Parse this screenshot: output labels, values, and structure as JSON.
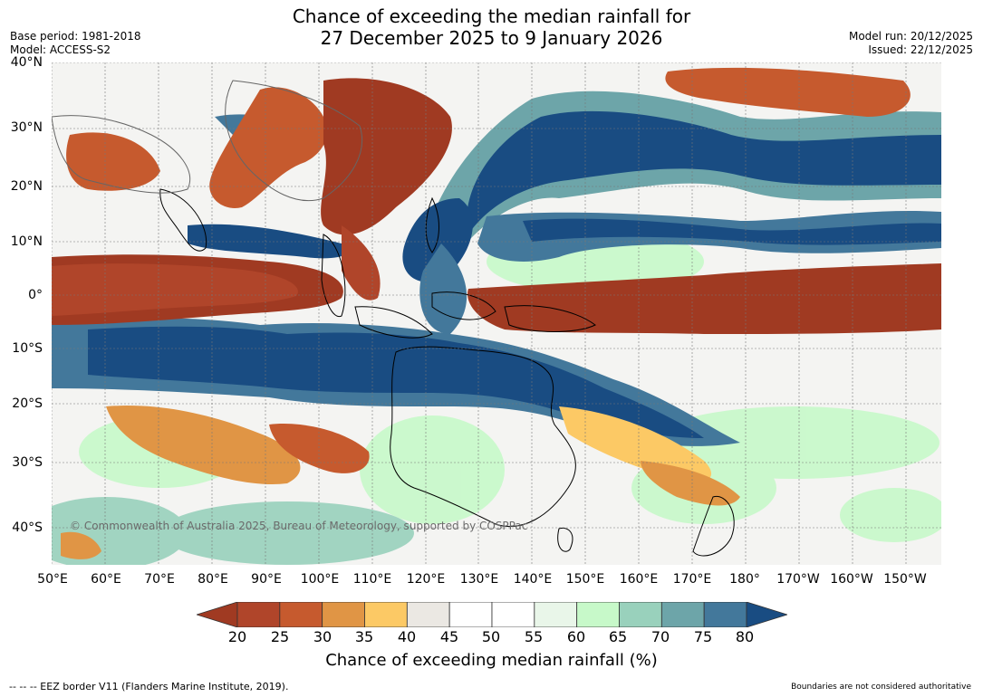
{
  "header": {
    "title_line1": "Chance of exceeding the median rainfall for",
    "title_line2": "27 December 2025 to 9 January 2026",
    "base_period": "Base period: 1981-2018",
    "model": "Model: ACCESS-S2",
    "model_run": "Model run: 20/12/2025",
    "issued": "Issued: 22/12/2025"
  },
  "map": {
    "lat_labels": [
      "40°N",
      "30°N",
      "20°N",
      "10°N",
      "0°",
      "10°S",
      "20°S",
      "30°S",
      "40°S"
    ],
    "lon_labels": [
      "50°E",
      "60°E",
      "70°E",
      "80°E",
      "90°E",
      "100°E",
      "110°E",
      "120°E",
      "130°E",
      "140°E",
      "150°E",
      "160°E",
      "170°E",
      "180°",
      "170°W",
      "160°W",
      "150°W"
    ],
    "copyright": "© Commonwealth of Australia 2025, Bureau of Meteorology, supported by COSPPac"
  },
  "legend": {
    "ticks": [
      "20",
      "25",
      "30",
      "35",
      "40",
      "45",
      "50",
      "55",
      "60",
      "65",
      "70",
      "75",
      "80"
    ],
    "colors": [
      "#a03a22",
      "#b0452a",
      "#c65a2e",
      "#e09545",
      "#fcc965",
      "#ebe8e3",
      "#ffffff",
      "#ffffff",
      "#e9f6e9",
      "#c7f9c9",
      "#99d1bc",
      "#6da5a9",
      "#43789b",
      "#194c82"
    ],
    "label": "Chance of exceeding median rainfall (%)"
  },
  "footer": {
    "eez_note": "--  --  -- EEZ border V11 (Flanders Marine Institute, 2019).",
    "disclaimer": "Boundaries are not considered authoritative"
  }
}
